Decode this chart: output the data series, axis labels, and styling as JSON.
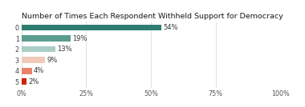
{
  "title": "Number of Times Each Respondent Withheld Support for Democracy",
  "categories": [
    "0",
    "1",
    "2",
    "3",
    "4",
    "5"
  ],
  "values": [
    54,
    19,
    13,
    9,
    4,
    2
  ],
  "labels": [
    "54%",
    "19%",
    "13%",
    "9%",
    "4%",
    "2%"
  ],
  "bar_colors": [
    "#2d7d72",
    "#5b9e90",
    "#aacdc6",
    "#f0cab8",
    "#e8836a",
    "#cc2200"
  ],
  "xlim": [
    0,
    100
  ],
  "xticks": [
    0,
    25,
    50,
    75,
    100
  ],
  "xtick_labels": [
    "0%",
    "25%",
    "50%",
    "75%",
    "100%"
  ],
  "title_fontsize": 6.8,
  "label_fontsize": 6.0,
  "tick_fontsize": 5.8,
  "background_color": "#ffffff",
  "grid_color": "#d8d2cc",
  "bar_height": 0.58
}
